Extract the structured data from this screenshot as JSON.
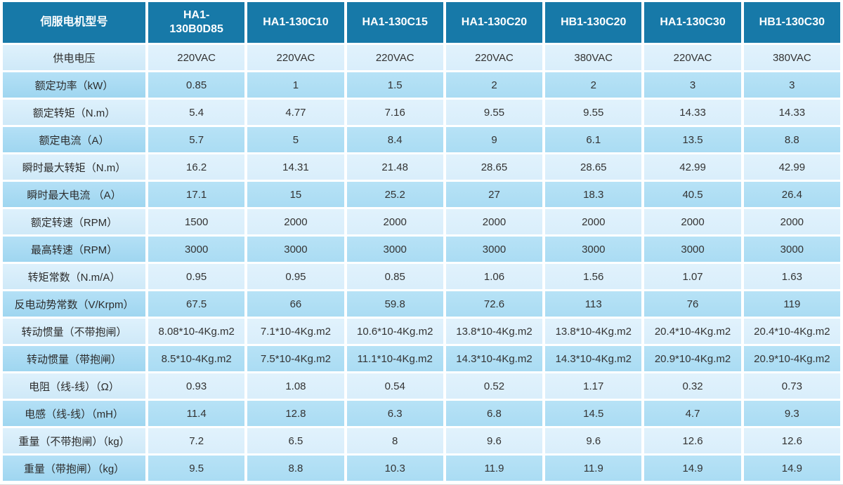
{
  "table": {
    "header": {
      "label": "伺服电机型号",
      "models": [
        "HA1-130B0D85",
        "HA1-130C10",
        "HA1-130C15",
        "HA1-130C20",
        "HB1-130C20",
        "HA1-130C30",
        "HB1-130C30"
      ]
    },
    "rows": [
      {
        "label": "供电电压",
        "values": [
          "220VAC",
          "220VAC",
          "220VAC",
          "220VAC",
          "380VAC",
          "220VAC",
          "380VAC"
        ]
      },
      {
        "label": "额定功率（kW）",
        "values": [
          "0.85",
          "1",
          "1.5",
          "2",
          "2",
          "3",
          "3"
        ]
      },
      {
        "label": "额定转矩（N.m）",
        "values": [
          "5.4",
          "4.77",
          "7.16",
          "9.55",
          "9.55",
          "14.33",
          "14.33"
        ]
      },
      {
        "label": "额定电流（A）",
        "values": [
          "5.7",
          "5",
          "8.4",
          "9",
          "6.1",
          "13.5",
          "8.8"
        ]
      },
      {
        "label": "瞬时最大转矩（N.m）",
        "values": [
          "16.2",
          "14.31",
          "21.48",
          "28.65",
          "28.65",
          "42.99",
          "42.99"
        ]
      },
      {
        "label": "瞬时最大电流 （A）",
        "values": [
          "17.1",
          "15",
          "25.2",
          "27",
          "18.3",
          "40.5",
          "26.4"
        ]
      },
      {
        "label": "额定转速（RPM）",
        "values": [
          "1500",
          "2000",
          "2000",
          "2000",
          "2000",
          "2000",
          "2000"
        ]
      },
      {
        "label": "最高转速（RPM）",
        "values": [
          "3000",
          "3000",
          "3000",
          "3000",
          "3000",
          "3000",
          "3000"
        ]
      },
      {
        "label": "转矩常数（N.m/A）",
        "values": [
          "0.95",
          "0.95",
          "0.85",
          "1.06",
          "1.56",
          "1.07",
          "1.63"
        ]
      },
      {
        "label": "反电动势常数（V/Krpm）",
        "values": [
          "67.5",
          "66",
          "59.8",
          "72.6",
          "113",
          "76",
          "119"
        ]
      },
      {
        "label": "转动惯量（不带抱闸）",
        "values": [
          "8.08*10-4Kg.m2",
          "7.1*10-4Kg.m2",
          "10.6*10-4Kg.m2",
          "13.8*10-4Kg.m2",
          "13.8*10-4Kg.m2",
          "20.4*10-4Kg.m2",
          "20.4*10-4Kg.m2"
        ]
      },
      {
        "label": "转动惯量（带抱闸）",
        "values": [
          "8.5*10-4Kg.m2",
          "7.5*10-4Kg.m2",
          "11.1*10-4Kg.m2",
          "14.3*10-4Kg.m2",
          "14.3*10-4Kg.m2",
          "20.9*10-4Kg.m2",
          "20.9*10-4Kg.m2"
        ]
      },
      {
        "label": "电阻（线-线）（Ω）",
        "values": [
          "0.93",
          "1.08",
          "0.54",
          "0.52",
          "1.17",
          "0.32",
          "0.73"
        ]
      },
      {
        "label": "电感（线-线）（mH）",
        "values": [
          "11.4",
          "12.8",
          "6.3",
          "6.8",
          "14.5",
          "4.7",
          "9.3"
        ]
      },
      {
        "label": "重量（不带抱闸）（kg）",
        "values": [
          "7.2",
          "6.5",
          "8",
          "9.6",
          "9.6",
          "12.6",
          "12.6"
        ]
      },
      {
        "label": "重量（带抱闸）（kg）",
        "values": [
          "9.5",
          "8.8",
          "10.3",
          "11.9",
          "11.9",
          "14.9",
          "14.9"
        ]
      }
    ]
  },
  "colors": {
    "header_bg": "#1779a8",
    "row_light": "#d9eefb",
    "row_dark": "#aadcf3",
    "header_text": "#ffffff",
    "body_text": "#333333",
    "bottom_rule": "#d9d9d9"
  }
}
